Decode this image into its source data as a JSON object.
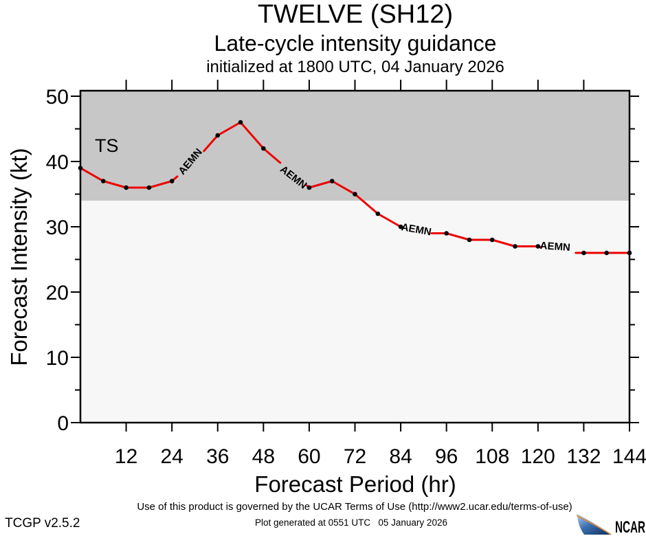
{
  "header": {
    "title": "TWELVE (SH12)",
    "subtitle": "Late-cycle intensity guidance",
    "init_line": "initialized at 1800 UTC, 04 January 2026"
  },
  "footer": {
    "terms": "Use of this product is governed by the UCAR Terms of Use (http://www2.ucar.edu/terms-of-use)",
    "generated": "Plot generated at 0551 UTC   05 January 2026",
    "version": "TCGP v2.5.2",
    "logo_text": "NCAR"
  },
  "chart_data": {
    "type": "line",
    "title": "TWELVE (SH12)",
    "subtitle": "Late-cycle intensity guidance",
    "init_label": "initialized at 1800 UTC, 04 January 2026",
    "xlabel": "Forecast Period (hr)",
    "ylabel": "Forecast Intensity (kt)",
    "xlim": [
      0,
      144
    ],
    "ylim": [
      0,
      50
    ],
    "grid": false,
    "legend_position": "none",
    "x_ticks": [
      12,
      24,
      36,
      48,
      60,
      72,
      84,
      96,
      108,
      120,
      132,
      144
    ],
    "y_ticks_major": [
      0,
      10,
      20,
      30,
      40,
      50
    ],
    "y_ticks_minor": [
      5,
      15,
      25,
      35,
      45
    ],
    "threshold_band": {
      "label": "TS",
      "from_kt": 34,
      "color": "#c7c7c7",
      "label_color": "#f2f2f2",
      "label_pos": {
        "hr": 6.9,
        "kt": 42.4
      }
    },
    "below_band_color": "#f7f7f7",
    "series": [
      {
        "name": "AEMN",
        "color": "#ee0000",
        "marker_color": "#000000",
        "x": [
          0,
          6,
          12,
          18,
          24,
          30,
          36,
          42,
          48,
          54,
          60,
          66,
          72,
          78,
          84,
          90,
          96,
          102,
          108,
          114,
          120,
          126,
          132,
          138,
          144
        ],
        "values": [
          39,
          37,
          36,
          36,
          37,
          40,
          44,
          46,
          42,
          39,
          36,
          37,
          35,
          32,
          30,
          29,
          29,
          28,
          28,
          27,
          27,
          26,
          26,
          26,
          26
        ]
      }
    ],
    "inline_labels": [
      {
        "text": "AEMN",
        "hr": 28.8,
        "kt": 40.0,
        "rotate": -50
      },
      {
        "text": "AEMN",
        "hr": 55.9,
        "kt": 37.6,
        "rotate": 38
      },
      {
        "text": "AEMN",
        "hr": 88.1,
        "kt": 29.6,
        "rotate": 10
      },
      {
        "text": "AEMN",
        "hr": 124.5,
        "kt": 27.0,
        "rotate": 4
      }
    ],
    "label_gaps_hr": [
      [
        25.4,
        32.4
      ],
      [
        52.4,
        59.1
      ],
      [
        84.7,
        92.1
      ],
      [
        120.9,
        129.9
      ]
    ]
  }
}
